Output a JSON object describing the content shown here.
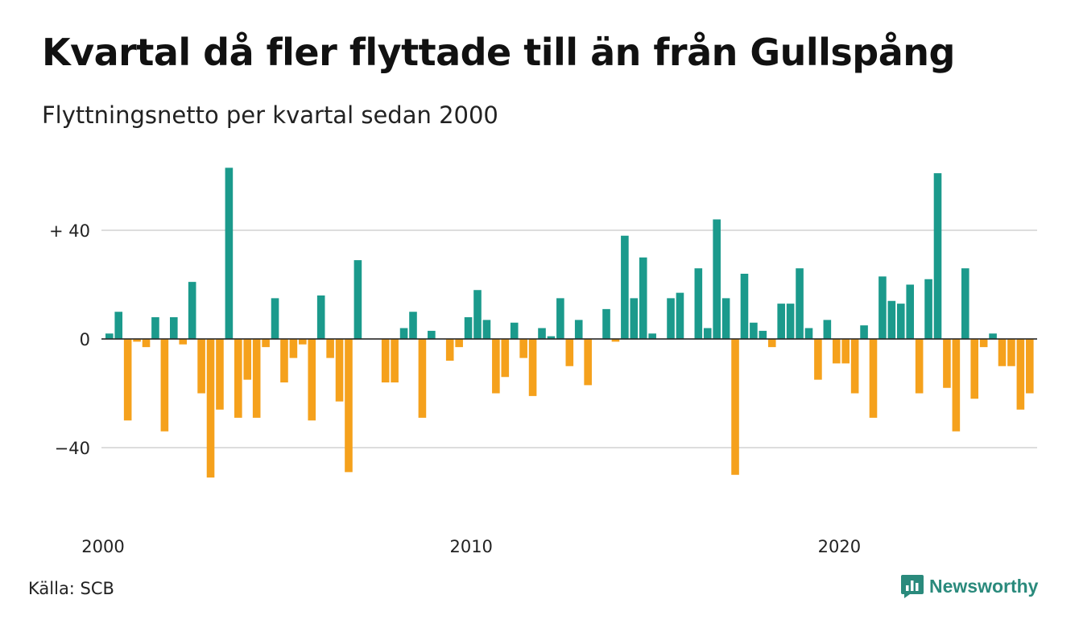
{
  "header": {
    "title": "Kvartal då fler flyttade till än från Gullspång",
    "subtitle": "Flyttningsnetto per kvartal sedan 2000"
  },
  "footer": {
    "source": "Källa: SCB",
    "logo_text": "Newsworthy",
    "logo_icon": "chart-bubble-icon"
  },
  "colors": {
    "positive": "#1b9a8c",
    "negative": "#f5a11c",
    "grid": "#dddddd",
    "brand": "#2a8a7c"
  },
  "chart_data": {
    "type": "bar",
    "start_year": 2000,
    "title": "Kvartal då fler flyttade till än från Gullspång",
    "subtitle": "Flyttningsnetto per kvartal sedan 2000",
    "y_ticks": [
      40,
      0,
      -40
    ],
    "y_tick_labels": [
      "+ 40",
      "0",
      "−40"
    ],
    "x_ticks": [
      "2000",
      "2010",
      "2020"
    ],
    "ylim": [
      -60,
      65
    ],
    "grid": true,
    "values": [
      2,
      10,
      -30,
      -1,
      -3,
      8,
      -34,
      8,
      -2,
      21,
      -20,
      -51,
      -26,
      63,
      -29,
      -15,
      -29,
      -3,
      15,
      -16,
      -7,
      -2,
      -30,
      16,
      -7,
      -23,
      -49,
      29,
      0,
      0,
      -16,
      -16,
      4,
      10,
      -29,
      3,
      0,
      -8,
      -3,
      8,
      18,
      7,
      -20,
      -14,
      6,
      -7,
      -21,
      4,
      1,
      15,
      -10,
      7,
      -17,
      0,
      11,
      -1,
      38,
      15,
      30,
      2,
      0,
      15,
      17,
      0,
      26,
      4,
      44,
      15,
      -50,
      24,
      6,
      3,
      -3,
      13,
      13,
      26,
      4,
      -15,
      7,
      -9,
      -9,
      -20,
      5,
      -29,
      23,
      14,
      13,
      20,
      -20,
      22,
      61,
      -18,
      -34,
      26,
      -22,
      -3,
      2,
      -10,
      -10,
      -26,
      -20
    ]
  }
}
